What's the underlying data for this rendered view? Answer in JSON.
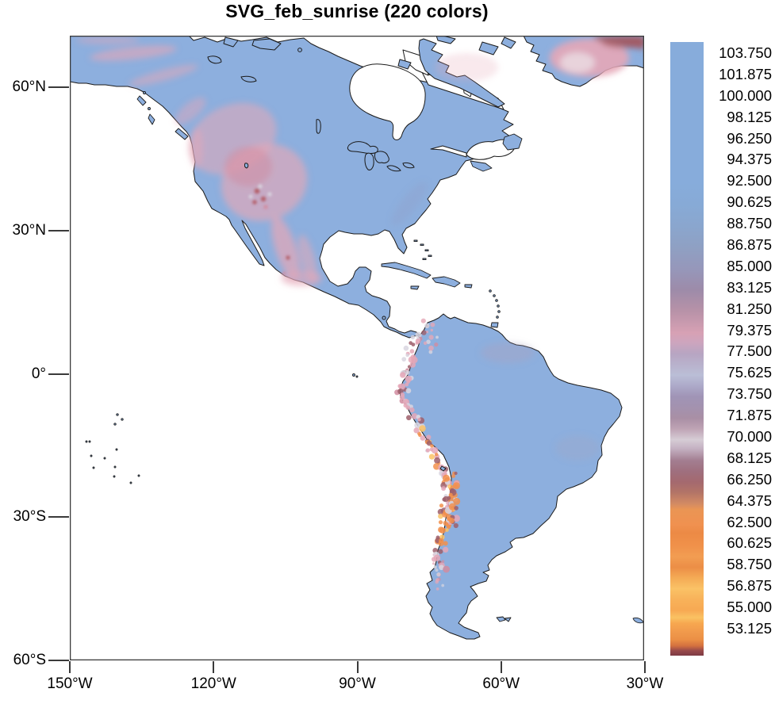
{
  "title": "SVG_feb_sunrise (220 colors)",
  "chart_data": {
    "type": "heatmap",
    "title": "SVG_feb_sunrise (220 colors)",
    "description": "Raster map of the Americas (150W-30W, 60S-71N); land shaded by value, ocean white; high values (blue ~85-104) over most land, low values (orange ~53-65) along the Andes; pink mid values (~66-82) over western North America, Mexico and Greenland.",
    "x_axis": {
      "tick_labels": [
        "150°W",
        "120°W",
        "90°W",
        "60°W",
        "30°W"
      ]
    },
    "y_axis": {
      "tick_labels": [
        "60°N",
        "30°N",
        "0°",
        "30°S",
        "60°S"
      ]
    },
    "colorbar": {
      "labels": [
        "103.750",
        "101.875",
        "100.000",
        "98.125",
        "96.250",
        "94.375",
        "92.500",
        "90.625",
        "88.750",
        "86.875",
        "85.000",
        "83.125",
        "81.250",
        "79.375",
        "77.500",
        "75.625",
        "73.750",
        "71.875",
        "70.000",
        "68.125",
        "66.250",
        "64.375",
        "62.500",
        "60.625",
        "58.750",
        "56.875",
        "55.000",
        "53.125"
      ],
      "stops": [
        {
          "p": 0.0,
          "c": "#87ACDB"
        },
        {
          "p": 0.23,
          "c": "#87ACDB"
        },
        {
          "p": 0.265,
          "c": "#87AAD6"
        },
        {
          "p": 0.3,
          "c": "#8AA6CE"
        },
        {
          "p": 0.335,
          "c": "#8FA0C3"
        },
        {
          "p": 0.37,
          "c": "#9697BA"
        },
        {
          "p": 0.404,
          "c": "#9D8BA9"
        },
        {
          "p": 0.439,
          "c": "#B892A8"
        },
        {
          "p": 0.474,
          "c": "#D7A1B4"
        },
        {
          "p": 0.49,
          "c": "#CDA5BE"
        },
        {
          "p": 0.508,
          "c": "#B7A5C2"
        },
        {
          "p": 0.543,
          "c": "#BABED6"
        },
        {
          "p": 0.56,
          "c": "#ADAAC9"
        },
        {
          "p": 0.578,
          "c": "#A094B6"
        },
        {
          "p": 0.595,
          "c": "#A392AF"
        },
        {
          "p": 0.613,
          "c": "#A98FA5"
        },
        {
          "p": 0.63,
          "c": "#BEA3B4"
        },
        {
          "p": 0.648,
          "c": "#D6CCD5"
        },
        {
          "p": 0.662,
          "c": "#C5B2C3"
        },
        {
          "p": 0.682,
          "c": "#A37E91"
        },
        {
          "p": 0.7,
          "c": "#9F6F7E"
        },
        {
          "p": 0.717,
          "c": "#A4696F"
        },
        {
          "p": 0.734,
          "c": "#B37467"
        },
        {
          "p": 0.752,
          "c": "#D28A64"
        },
        {
          "p": 0.762,
          "c": "#EA9554"
        },
        {
          "p": 0.787,
          "c": "#F09150"
        },
        {
          "p": 0.8,
          "c": "#EC8A45"
        },
        {
          "p": 0.821,
          "c": "#F0914A"
        },
        {
          "p": 0.839,
          "c": "#F29D52"
        },
        {
          "p": 0.856,
          "c": "#EC8E46"
        },
        {
          "p": 0.873,
          "c": "#F4AA55"
        },
        {
          "p": 0.891,
          "c": "#FAC266"
        },
        {
          "p": 0.908,
          "c": "#F8B25A"
        },
        {
          "p": 0.926,
          "c": "#F7A953"
        },
        {
          "p": 0.938,
          "c": "#FAC263"
        },
        {
          "p": 0.947,
          "c": "#F7A850"
        },
        {
          "p": 0.961,
          "c": "#F19A4C"
        },
        {
          "p": 0.974,
          "c": "#EB8F45"
        },
        {
          "p": 0.984,
          "c": "#D4713F"
        },
        {
          "p": 0.992,
          "c": "#97494B"
        },
        {
          "p": 1.0,
          "c": "#7D3A44"
        }
      ]
    },
    "colors": {
      "ocean": "#FFFFFF",
      "land": "#8DAFDE",
      "coast": "#1A1A1A",
      "frame": "#3A3A3A",
      "text": "#000000",
      "pink": "#E5A7B7",
      "rose": "#D18CA0",
      "red": "#B4606B",
      "ltgray": "#D9D6E0",
      "orange": "#F2914E",
      "yellow": "#FBC366",
      "maroon": "#9D5F6B",
      "greenland_red": "#A2575F",
      "greenland_pale": "#E8D5DC",
      "highland": "#A9A2C0",
      "appalachia": "#8FA0C8"
    }
  }
}
